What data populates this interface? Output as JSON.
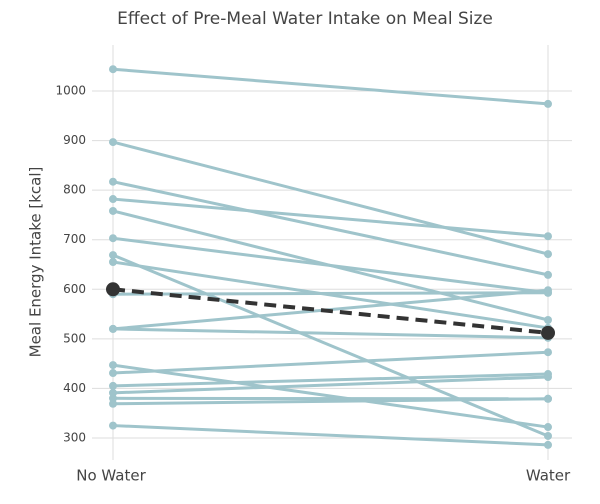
{
  "chart_data": {
    "type": "slope",
    "title": "Effect of Pre-Meal Water Intake on Meal Size",
    "y_label": "Meal Energy Intake [kcal]",
    "categories": [
      "No Water",
      "Water"
    ],
    "ylim": [
      265,
      1065
    ],
    "yticks": [
      300,
      400,
      500,
      600,
      700,
      800,
      900,
      1000
    ],
    "grid": true,
    "series": [
      {
        "color": "#9fc4cb",
        "values": [
          1044,
          974
        ]
      },
      {
        "color": "#9fc4cb",
        "values": [
          897,
          671
        ]
      },
      {
        "color": "#9fc4cb",
        "values": [
          817,
          629
        ]
      },
      {
        "color": "#9fc4cb",
        "values": [
          782,
          707
        ]
      },
      {
        "color": "#9fc4cb",
        "values": [
          758,
          538
        ]
      },
      {
        "color": "#9fc4cb",
        "values": [
          703,
          593
        ]
      },
      {
        "color": "#9fc4cb",
        "values": [
          669,
          304
        ]
      },
      {
        "color": "#9fc4cb",
        "values": [
          655,
          522
        ]
      },
      {
        "color": "#9fc4cb",
        "values": [
          590,
          593
        ]
      },
      {
        "color": "#9fc4cb",
        "values": [
          520,
          598
        ]
      },
      {
        "color": "#9fc4cb",
        "values": [
          520,
          502
        ]
      },
      {
        "color": "#9fc4cb",
        "values": [
          447,
          322
        ]
      },
      {
        "color": "#9fc4cb",
        "values": [
          431,
          473
        ]
      },
      {
        "color": "#9fc4cb",
        "values": [
          405,
          429
        ]
      },
      {
        "color": "#9fc4cb",
        "values": [
          391,
          423
        ]
      },
      {
        "color": "#9fc4cb",
        "values": [
          380,
          379
        ]
      },
      {
        "color": "#9fc4cb",
        "values": [
          369,
          379
        ]
      },
      {
        "color": "#9fc4cb",
        "values": [
          325,
          286
        ]
      },
      {
        "color": "#333333",
        "values": [
          600,
          512
        ],
        "dashed": true
      }
    ]
  }
}
